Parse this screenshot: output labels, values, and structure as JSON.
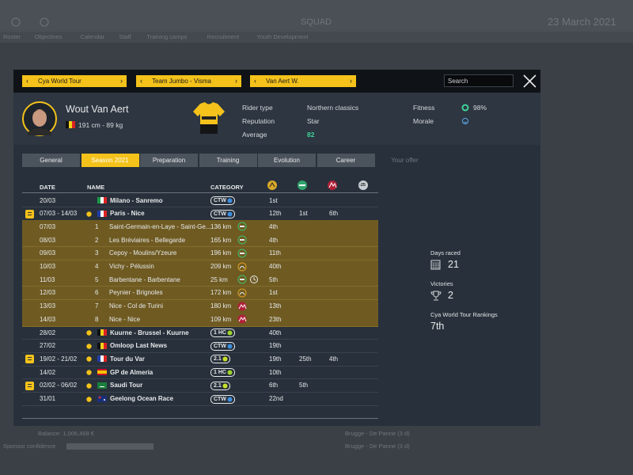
{
  "background": {
    "screen_title": "SQUAD",
    "date": "23 March 2021",
    "menu": [
      "Roster",
      "Objectives",
      "Calendar",
      "Staff",
      "Training camps",
      "Recruitment",
      "Youth Development"
    ],
    "balance": "Balance: 1,006,468 €",
    "sponsor_confidence": "Sponsor confidence",
    "upcoming": [
      "Brugge - De Panne (3 d)",
      "Brugge - De Panne (3 d)"
    ]
  },
  "selectors": [
    "Cya World Tour",
    "Team Jumbo - Visma",
    "Van Aert W."
  ],
  "search_placeholder": "Search",
  "rider": {
    "name": "Wout Van Aert",
    "physique": "191 cm - 89 kg",
    "attributes": [
      {
        "label": "Rider type",
        "value": "Northern classics"
      },
      {
        "label": "Reputation",
        "value": "Star"
      },
      {
        "label": "Average",
        "value": 82
      }
    ],
    "fitness_label": "Fitness",
    "fitness": "98%",
    "morale_label": "Morale"
  },
  "tabs": [
    "General",
    "Season 2021",
    "Preparation",
    "Training",
    "Evolution",
    "Career",
    "Your offer"
  ],
  "table": {
    "columns": [
      "DATE",
      "NAME",
      "CATEGORY"
    ],
    "young_rider_column": "-25",
    "rows": [
      {
        "date": "20/03",
        "name": "Milano - Sanremo",
        "category": "CTW",
        "results": [
          "1st"
        ]
      },
      {
        "date": "07/03 - 14/03",
        "name": "Paris - Nice",
        "category": "CTW",
        "results": [
          "12th",
          "1st",
          "6th"
        ]
      },
      {
        "date": "07/03",
        "stage": 1,
        "name": "Saint-Germain-en-Laye - Saint-Ge...",
        "distance": "136 km",
        "results": [
          "4th"
        ]
      },
      {
        "date": "08/03",
        "stage": 2,
        "name": "Les Bréviaires - Bellegarde",
        "distance": "165 km",
        "results": [
          "4th"
        ]
      },
      {
        "date": "09/03",
        "stage": 3,
        "name": "Cepoy - Moulins/Yzeure",
        "distance": "196 km",
        "results": [
          "11th"
        ]
      },
      {
        "date": "10/03",
        "stage": 4,
        "name": "Vichy - Pélussin",
        "distance": "209 km",
        "results": [
          "40th"
        ]
      },
      {
        "date": "11/03",
        "stage": 5,
        "name": "Barbentane - Barbentane",
        "distance": "25 km",
        "results": [
          "5th"
        ]
      },
      {
        "date": "12/03",
        "stage": 6,
        "name": "Peynier - Brignoles",
        "distance": "172 km",
        "results": [
          "1st"
        ]
      },
      {
        "date": "13/03",
        "stage": 7,
        "name": "Nice - Col de Turini",
        "distance": "180 km",
        "results": [
          "13th"
        ]
      },
      {
        "date": "14/03",
        "stage": 8,
        "name": "Nice - Nice",
        "distance": "109 km",
        "results": [
          "23th"
        ]
      },
      {
        "date": "28/02",
        "name": "Kuurne - Brussel - Kuurne",
        "category": "1 HC",
        "results": [
          "40th"
        ]
      },
      {
        "date": "27/02",
        "name": "Omloop Last News",
        "category": "CTW",
        "results": [
          "19th"
        ]
      },
      {
        "date": "19/02 - 21/02",
        "name": "Tour du Var",
        "category": "2.1",
        "results": [
          "19th",
          "25th",
          "4th"
        ]
      },
      {
        "date": "14/02",
        "name": "GP de Almeria",
        "category": "1 HC",
        "results": [
          "10th"
        ]
      },
      {
        "date": "02/02 - 06/02",
        "name": "Saudi Tour",
        "category": "2.1",
        "results": [
          "6th",
          "5th"
        ]
      },
      {
        "date": "31/01",
        "name": "Geelong Ocean Race",
        "category": "CTW",
        "results": [
          "22nd"
        ]
      }
    ]
  },
  "summary": [
    {
      "label": "Days raced",
      "value": 21
    },
    {
      "label": "Victories",
      "value": 2
    },
    {
      "label": "Cya World Tour Rankings",
      "value": "7th"
    }
  ]
}
